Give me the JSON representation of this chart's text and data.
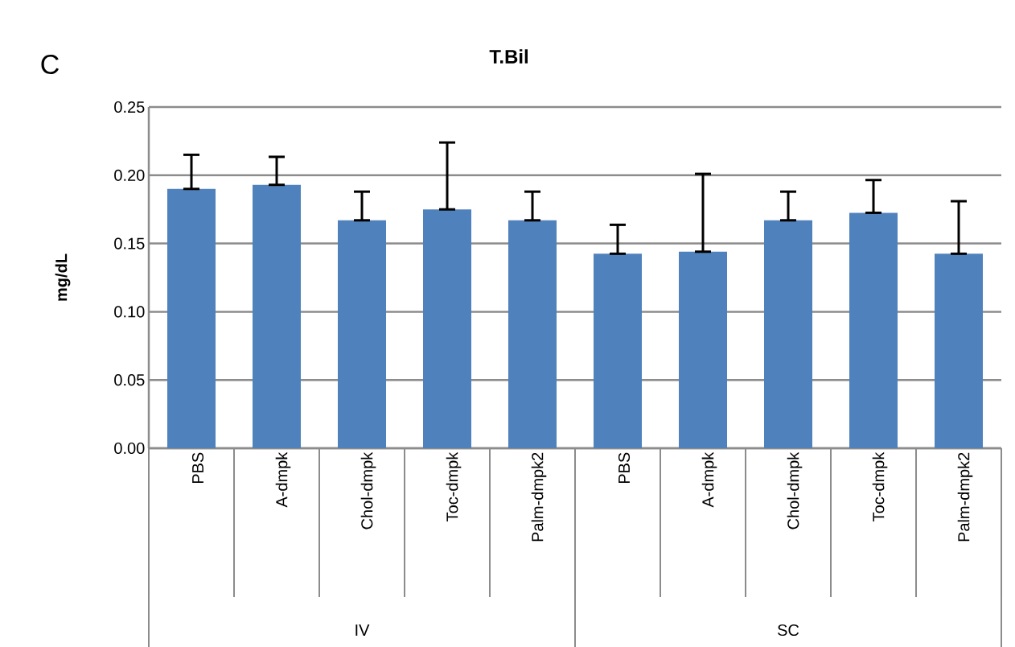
{
  "chart_data": {
    "type": "bar",
    "title": "T.Bil",
    "ylabel": "mg/dL",
    "categories": [
      "PBS",
      "A-dmpk",
      "Chol-dmpk",
      "Toc-dmpk",
      "Palm-dmpk2",
      "PBS",
      "A-dmpk",
      "Chol-dmpk",
      "Toc-dmpk",
      "Palm-dmpk2"
    ],
    "values": [
      0.19,
      0.193,
      0.167,
      0.175,
      0.167,
      0.1425,
      0.144,
      0.167,
      0.1725,
      0.1425
    ],
    "errors": [
      [
        0.19,
        0.215
      ],
      [
        0.193,
        0.2135
      ],
      [
        0.167,
        0.188
      ],
      [
        0.175,
        0.224
      ],
      [
        0.167,
        0.188
      ],
      [
        0.1425,
        0.1637
      ],
      [
        0.144,
        0.201
      ],
      [
        0.167,
        0.188
      ],
      [
        0.1725,
        0.1965
      ],
      [
        0.1425,
        0.181
      ]
    ],
    "color": "#4f81bd",
    "ylim": [
      0,
      0.25
    ],
    "yticks": [
      {
        "value": 0,
        "label": "0.00"
      },
      {
        "value": 0.05,
        "label": "0.05"
      },
      {
        "value": 0.1,
        "label": "0.10"
      },
      {
        "value": 0.15,
        "label": "0.15"
      },
      {
        "value": 0.2,
        "label": "0.20"
      },
      {
        "value": 0.25,
        "label": "0.25"
      }
    ],
    "grid": "y",
    "annotations": [
      "C",
      "IV",
      "SC"
    ]
  }
}
